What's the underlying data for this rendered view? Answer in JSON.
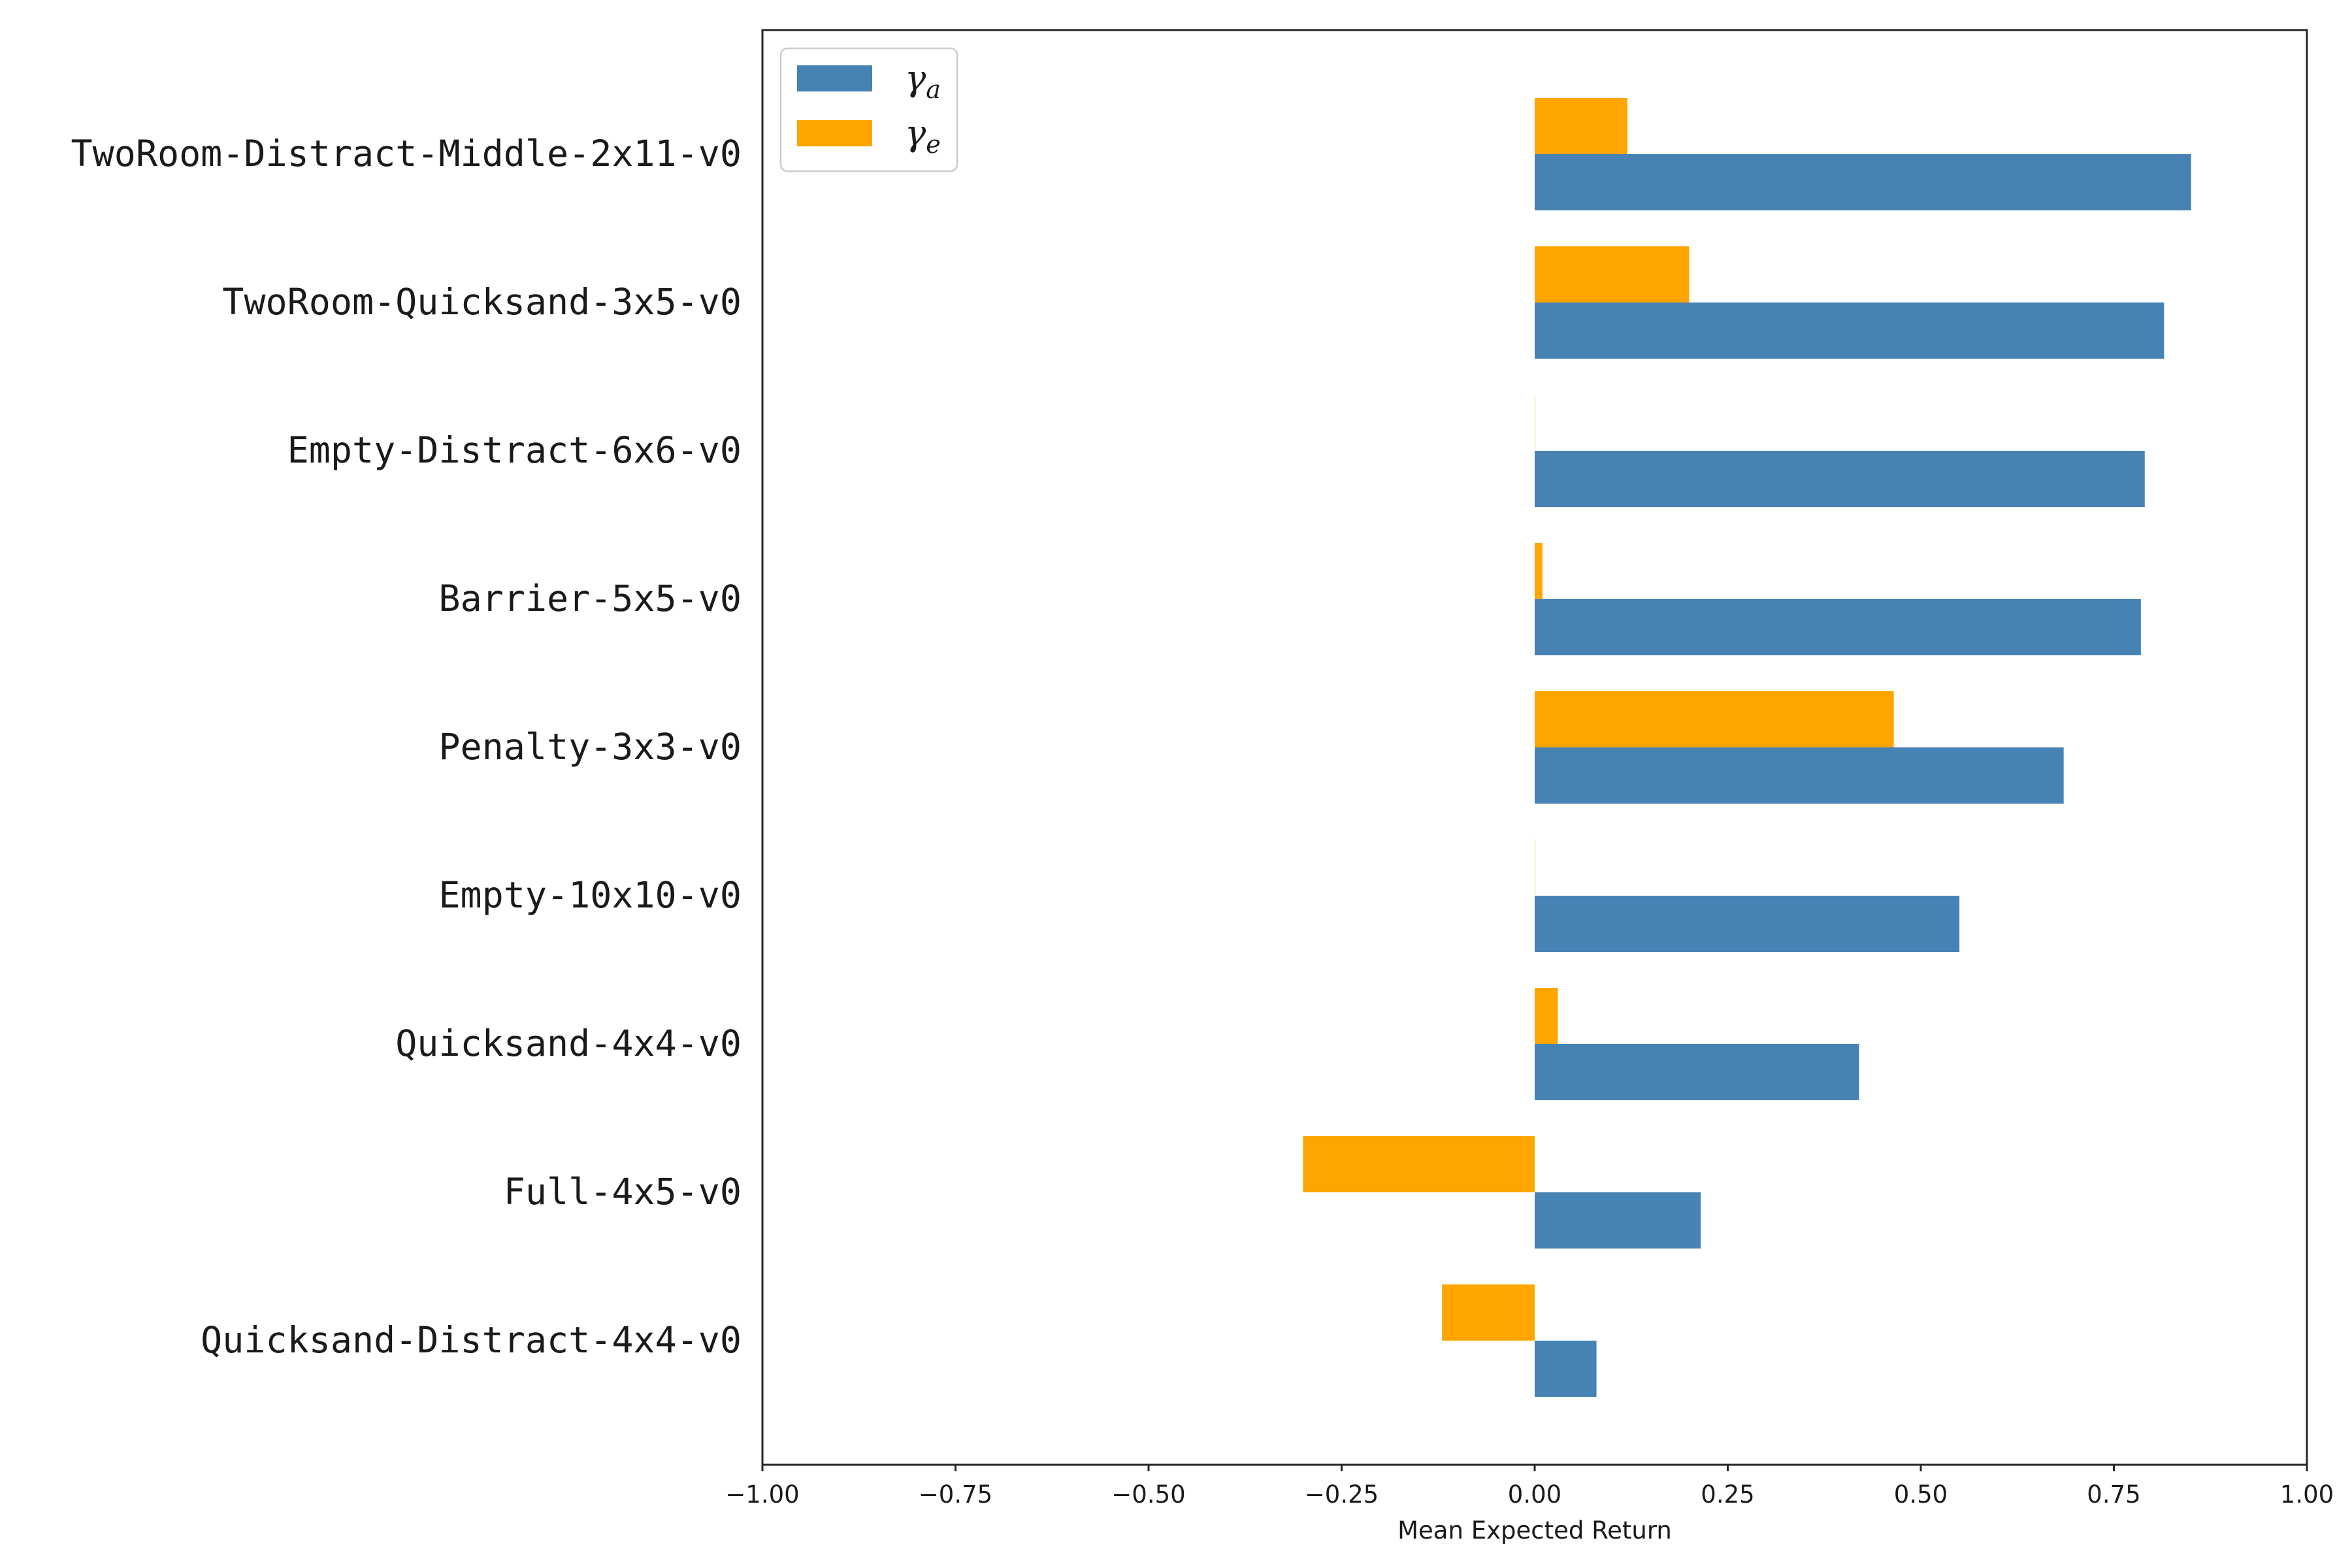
{
  "chart_data": {
    "type": "bar",
    "orientation": "horizontal",
    "categories": [
      "TwoRoom-Distract-Middle-2x11-v0",
      "TwoRoom-Quicksand-3x5-v0",
      "Empty-Distract-6x6-v0",
      "Barrier-5x5-v0",
      "Penalty-3x3-v0",
      "Empty-10x10-v0",
      "Quicksand-4x4-v0",
      "Full-4x5-v0",
      "Quicksand-Distract-4x4-v0"
    ],
    "series": [
      {
        "name": "γa",
        "name_base": "γ",
        "name_sub": "a",
        "color": "#4682b4",
        "values": [
          0.85,
          0.815,
          0.79,
          0.785,
          0.685,
          0.55,
          0.42,
          0.215,
          0.08
        ]
      },
      {
        "name": "γe",
        "name_base": "γ",
        "name_sub": "e",
        "color": "#ffa500",
        "values": [
          0.12,
          0.2,
          0.0,
          0.01,
          0.465,
          0.0,
          0.03,
          -0.3,
          -0.12
        ]
      }
    ],
    "xlabel": "Mean Expected Return",
    "ylabel": "",
    "title": "",
    "xlim": [
      -1.0,
      1.0
    ],
    "xticks": [
      -1.0,
      -0.75,
      -0.5,
      -0.25,
      0.0,
      0.25,
      0.5,
      0.75,
      1.0
    ],
    "xtick_labels": [
      "−1.00",
      "−0.75",
      "−0.50",
      "−0.25",
      "0.00",
      "0.25",
      "0.50",
      "0.75",
      "1.00"
    ],
    "grid": false,
    "legend_position": "top-left"
  }
}
